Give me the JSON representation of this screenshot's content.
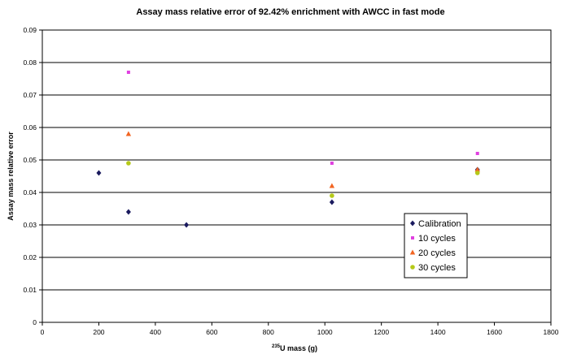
{
  "chart_data": {
    "type": "scatter",
    "title": "Assay mass relative error of 92.42% enrichment with AWCC in fast mode",
    "xlabel_sup": "235",
    "xlabel_main": "U mass (g)",
    "ylabel": "Assay mass relative error",
    "xlim": [
      0,
      1800
    ],
    "ylim": [
      0,
      0.09
    ],
    "x_ticks": [
      "0",
      "200",
      "400",
      "600",
      "800",
      "1000",
      "1200",
      "1400",
      "1600",
      "1800"
    ],
    "y_ticks": [
      "0",
      "0.01",
      "0.02",
      "0.03",
      "0.04",
      "0.05",
      "0.06",
      "0.07",
      "0.08",
      "0.09"
    ],
    "grid": "horizontal",
    "legend_position": "right",
    "series": [
      {
        "name": "Calibration",
        "marker": "diamond",
        "color": "#1a1a5e",
        "points": [
          [
            200,
            0.046
          ],
          [
            305,
            0.034
          ],
          [
            510,
            0.03
          ],
          [
            1025,
            0.037
          ],
          [
            1540,
            0.047
          ]
        ]
      },
      {
        "name": "10 cycles",
        "marker": "square",
        "color": "#e040e0",
        "points": [
          [
            305,
            0.077
          ],
          [
            1025,
            0.049
          ],
          [
            1540,
            0.052
          ]
        ]
      },
      {
        "name": "20 cycles",
        "marker": "triangle",
        "color": "#f26522",
        "points": [
          [
            305,
            0.058
          ],
          [
            1025,
            0.042
          ],
          [
            1540,
            0.047
          ]
        ]
      },
      {
        "name": "30 cycles",
        "marker": "circle",
        "color": "#b5c918",
        "points": [
          [
            305,
            0.049
          ],
          [
            1025,
            0.039
          ],
          [
            1540,
            0.046
          ]
        ]
      }
    ]
  }
}
